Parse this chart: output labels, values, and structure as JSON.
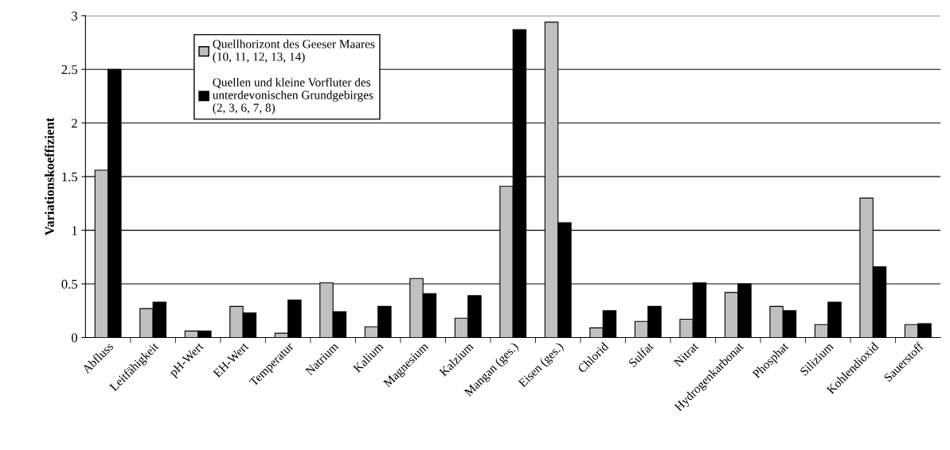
{
  "chart_data": {
    "type": "bar",
    "ylabel": "Variationskoeffizient",
    "categories": [
      "Abfluss",
      "Leitfähigkeit",
      "pH-Wert",
      "EH-Wert",
      "Temperatur",
      "Natrium",
      "Kalium",
      "Magnesium",
      "Kalzium",
      "Mangan (ges.)",
      "Eisen (ges.)",
      "Chlorid",
      "Sulfat",
      "Nitrat",
      "Hydrogenkarbonat",
      "Phosphat",
      "Silizium",
      "Kohlendioxid",
      "Sauerstoff"
    ],
    "series": [
      {
        "name": "Quellhorizont des Geeser Maares\n(10, 11, 12, 13, 14)",
        "color": "#c0c0c0",
        "values": [
          1.56,
          0.27,
          0.06,
          0.29,
          0.04,
          0.51,
          0.1,
          0.55,
          0.18,
          1.41,
          2.94,
          0.09,
          0.15,
          0.17,
          0.42,
          0.29,
          0.12,
          1.3,
          0.12
        ]
      },
      {
        "name": "Quellen und kleine Vorfluter des\nunterdevonischen Grundgebirges\n(2, 3, 6, 7, 8)",
        "color": "#000000",
        "values": [
          2.5,
          0.33,
          0.06,
          0.23,
          0.35,
          0.24,
          0.29,
          0.41,
          0.39,
          2.87,
          1.07,
          0.25,
          0.29,
          0.51,
          0.5,
          0.25,
          0.33,
          0.66,
          0.13
        ]
      }
    ],
    "ylim": [
      0,
      3
    ],
    "yticks": [
      0,
      0.5,
      1,
      1.5,
      2,
      2.5,
      3
    ],
    "grid": "y",
    "legend": "top left"
  }
}
